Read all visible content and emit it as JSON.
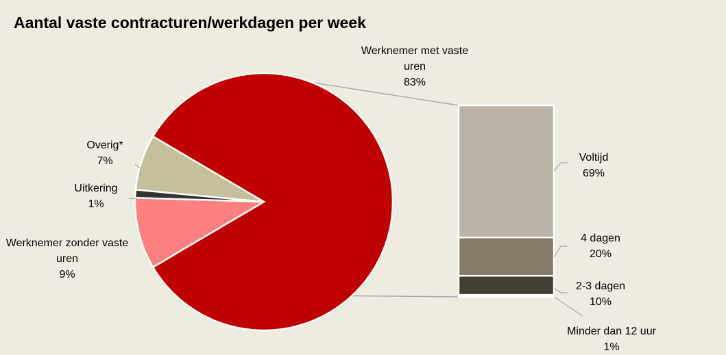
{
  "chart_data": {
    "type": "pie",
    "title": "Aantal vaste contracturen/werkdagen per week",
    "categories": [
      "Werknemer zonder vaste uren",
      "Uitkering",
      "Overig*",
      "Werknemer met vaste uren"
    ],
    "values": [
      9,
      1,
      7,
      83
    ],
    "value_labels": [
      "9%",
      "1%",
      "7%",
      "83%"
    ],
    "colors": [
      "#ff8080",
      "#333333",
      "#c6bf9b",
      "#c00000"
    ],
    "breakdown": {
      "type": "bar",
      "categories": [
        "Voltijd",
        "4 dagen",
        "2-3 dagen",
        "Minder dan 12 uur"
      ],
      "values": [
        69,
        20,
        10,
        1
      ],
      "value_labels": [
        "69%",
        "20%",
        "10%",
        "1%"
      ],
      "colors": [
        "#bbb3a6",
        "#857a67",
        "#423e33",
        "#f4f1ea"
      ]
    }
  }
}
